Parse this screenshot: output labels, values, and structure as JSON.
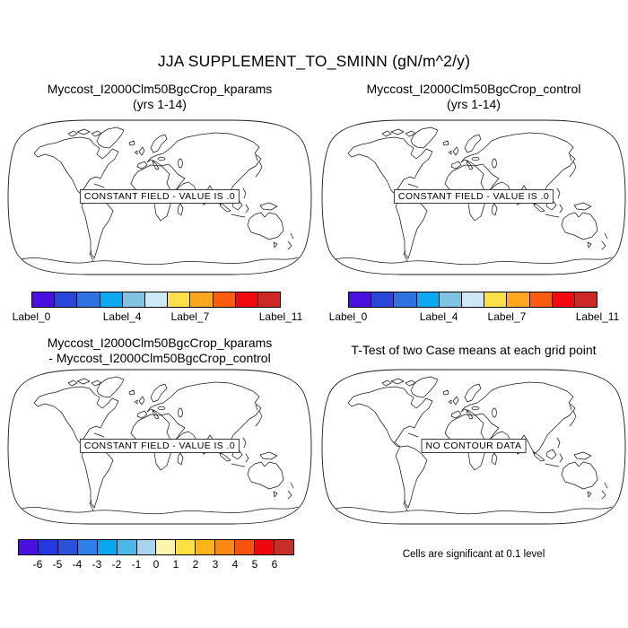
{
  "page": {
    "background_color": "#ffffff",
    "line_color": "#000000",
    "main_title": "JJA SUPPLEMENT_TO_SMINN (gN/m^2/y)"
  },
  "panels": [
    {
      "id": "top-left",
      "title": "Myccost_I2000Clm50BgcCrop_kparams",
      "subtitle": "(yrs 1-14)",
      "overlay": "CONSTANT FIELD - VALUE IS .0",
      "colorbar": {
        "colors": [
          "#4a10e0",
          "#2a46d8",
          "#2e72e0",
          "#0ca8f0",
          "#7fc2e2",
          "#cfe8f8",
          "#fbe04a",
          "#ffa81f",
          "#fb5c10",
          "#f2080e",
          "#cc2824"
        ],
        "ticks": [
          {
            "label": "Label_0",
            "b": 0
          },
          {
            "label": "Label_4",
            "b": 4
          },
          {
            "label": "Label_7",
            "b": 7
          },
          {
            "label": "Label_11",
            "b": 11
          }
        ]
      }
    },
    {
      "id": "top-right",
      "title": "Myccost_I2000Clm50BgcCrop_control",
      "subtitle": "(yrs 1-14)",
      "overlay": "CONSTANT FIELD - VALUE IS .0",
      "colorbar": {
        "colors": [
          "#4a10e0",
          "#2a46d8",
          "#2e72e0",
          "#0ca8f0",
          "#7fc2e2",
          "#cfe8f8",
          "#fbe04a",
          "#ffa81f",
          "#fb5c10",
          "#f2080e",
          "#cc2824"
        ],
        "ticks": [
          {
            "label": "Label_0",
            "b": 0
          },
          {
            "label": "Label_4",
            "b": 4
          },
          {
            "label": "Label_7",
            "b": 7
          },
          {
            "label": "Label_11",
            "b": 11
          }
        ]
      }
    },
    {
      "id": "bottom-left",
      "title": "Myccost_I2000Clm50BgcCrop_kparams",
      "subtitle": "- Myccost_I2000Clm50BgcCrop_control",
      "overlay": "CONSTANT FIELD - VALUE IS .0",
      "colorbar": {
        "colors": [
          "#4a10e0",
          "#2438e0",
          "#2a52d8",
          "#2f7fe8",
          "#0aa5f0",
          "#4cb8e8",
          "#a8d4f0",
          "#fdf5aa",
          "#fee042",
          "#ffb31a",
          "#fb8812",
          "#f8520c",
          "#ee080e",
          "#c62f28"
        ],
        "ticks": [
          {
            "label": "-6",
            "b": 1
          },
          {
            "label": "-5",
            "b": 2
          },
          {
            "label": "-4",
            "b": 3
          },
          {
            "label": "-3",
            "b": 4
          },
          {
            "label": "-2",
            "b": 5
          },
          {
            "label": "-1",
            "b": 6
          },
          {
            "label": "0",
            "b": 7
          },
          {
            "label": "1",
            "b": 8
          },
          {
            "label": "2",
            "b": 9
          },
          {
            "label": "3",
            "b": 10
          },
          {
            "label": "4",
            "b": 11
          },
          {
            "label": "5",
            "b": 12
          },
          {
            "label": "6",
            "b": 13
          }
        ]
      }
    },
    {
      "id": "bottom-right",
      "title": "T-Test of two Case means at each grid point",
      "overlay": "NO CONTOUR DATA",
      "caption": "Cells are significant at 0.1 level"
    }
  ],
  "chart_data": [
    {
      "type": "map",
      "projection": "Robinson world coastlines",
      "title": "Myccost_I2000Clm50BgcCrop_kparams",
      "subtitle": "(yrs 1-14)",
      "figure_title": "JJA SUPPLEMENT_TO_SMINN (gN/m^2/y)",
      "status_annotation": "CONSTANT FIELD - VALUE IS .0",
      "constant_value": 0.0,
      "colorbar": {
        "n_colors": 11,
        "boundary_labels_shown": [
          "Label_0",
          "Label_4",
          "Label_7",
          "Label_11"
        ],
        "label_boundaries": [
          0,
          4,
          7,
          11
        ]
      }
    },
    {
      "type": "map",
      "projection": "Robinson world coastlines",
      "title": "Myccost_I2000Clm50BgcCrop_control",
      "subtitle": "(yrs 1-14)",
      "status_annotation": "CONSTANT FIELD - VALUE IS .0",
      "constant_value": 0.0,
      "colorbar": {
        "n_colors": 11,
        "boundary_labels_shown": [
          "Label_0",
          "Label_4",
          "Label_7",
          "Label_11"
        ],
        "label_boundaries": [
          0,
          4,
          7,
          11
        ]
      }
    },
    {
      "type": "map",
      "projection": "Robinson world coastlines",
      "title": "Myccost_I2000Clm50BgcCrop_kparams - Myccost_I2000Clm50BgcCrop_control",
      "status_annotation": "CONSTANT FIELD - VALUE IS .0",
      "constant_value": 0.0,
      "colorbar": {
        "n_colors": 14,
        "boundary_labels_shown": [
          "-6",
          "-5",
          "-4",
          "-3",
          "-2",
          "-1",
          "0",
          "1",
          "2",
          "3",
          "4",
          "5",
          "6"
        ],
        "values": [
          -6,
          -5,
          -4,
          -3,
          -2,
          -1,
          0,
          1,
          2,
          3,
          4,
          5,
          6
        ]
      }
    },
    {
      "type": "map",
      "projection": "Robinson world coastlines",
      "title": "T-Test of two Case means at each grid point",
      "status_annotation": "NO CONTOUR DATA",
      "note": "Cells are significant at 0.1 level"
    }
  ]
}
